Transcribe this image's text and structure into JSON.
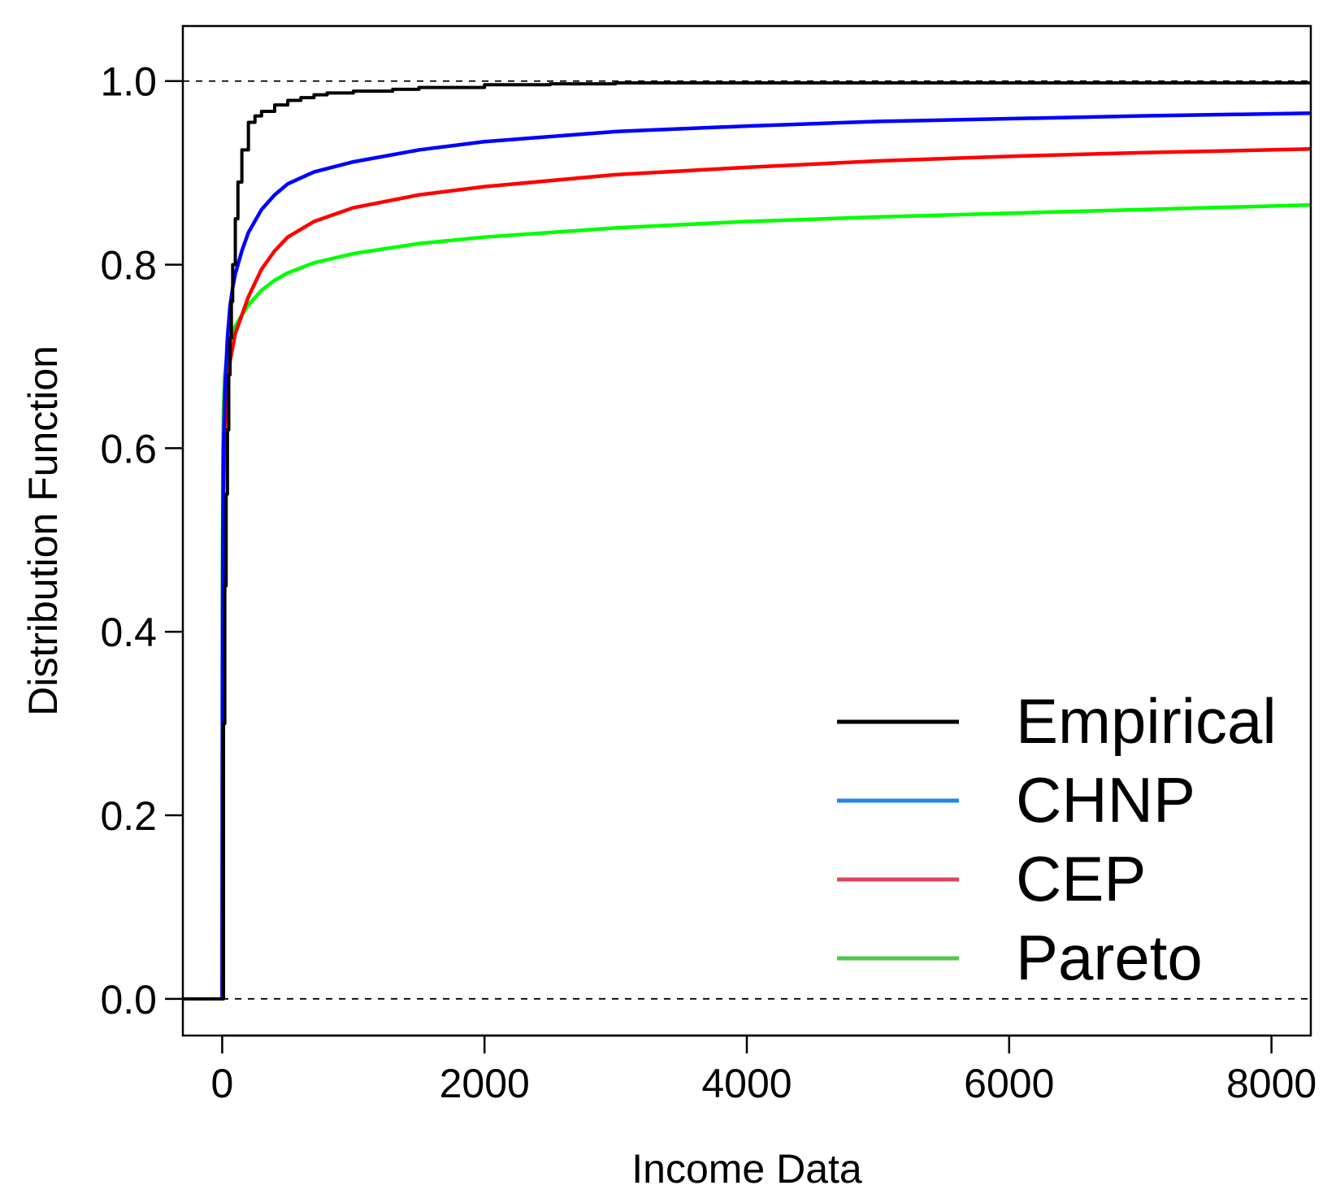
{
  "chart_data": {
    "type": "line",
    "title": "",
    "xlabel": "Income Data",
    "ylabel": "Distribution Function",
    "xlim": [
      -300,
      8300
    ],
    "ylim": [
      -0.04,
      1.06
    ],
    "x_ticks": [
      0,
      2000,
      4000,
      6000,
      8000
    ],
    "x_tick_labels": [
      "0",
      "2000",
      "4000",
      "6000",
      "8000"
    ],
    "y_ticks": [
      0.0,
      0.2,
      0.4,
      0.6,
      0.8,
      1.0
    ],
    "y_tick_labels": [
      "0.0",
      "0.2",
      "0.4",
      "0.6",
      "0.8",
      "1.0"
    ],
    "reference_lines": [
      0.0,
      1.0
    ],
    "grid": false,
    "legend_position": "bottom-right",
    "series": [
      {
        "name": "Empirical",
        "color": "#000000",
        "legend_color": "#000000",
        "step": true,
        "x": [
          -300,
          0,
          10,
          20,
          30,
          40,
          50,
          60,
          70,
          80,
          100,
          120,
          150,
          200,
          250,
          300,
          400,
          500,
          600,
          700,
          800,
          1000,
          1300,
          1500,
          2000,
          2500,
          3000,
          5000,
          8300
        ],
        "y": [
          0,
          0,
          0.3,
          0.45,
          0.55,
          0.62,
          0.68,
          0.72,
          0.76,
          0.8,
          0.85,
          0.89,
          0.925,
          0.955,
          0.962,
          0.967,
          0.974,
          0.979,
          0.982,
          0.985,
          0.987,
          0.989,
          0.991,
          0.993,
          0.996,
          0.997,
          0.998,
          0.998,
          0.998
        ]
      },
      {
        "name": "CHNP",
        "color": "#0000ff",
        "legend_color": "#2486e6",
        "x": [
          0,
          2,
          5,
          10,
          20,
          40,
          60,
          80,
          100,
          150,
          200,
          300,
          400,
          500,
          700,
          1000,
          1500,
          2000,
          3000,
          4000,
          5000,
          6000,
          7000,
          8300
        ],
        "y": [
          0,
          0.35,
          0.5,
          0.6,
          0.66,
          0.72,
          0.755,
          0.775,
          0.79,
          0.815,
          0.835,
          0.86,
          0.876,
          0.888,
          0.901,
          0.912,
          0.925,
          0.934,
          0.945,
          0.951,
          0.956,
          0.959,
          0.962,
          0.965
        ]
      },
      {
        "name": "CEP",
        "color": "#ff0000",
        "legend_color": "#e0445e",
        "x": [
          0,
          2,
          5,
          10,
          20,
          40,
          60,
          80,
          100,
          150,
          200,
          300,
          400,
          500,
          700,
          1000,
          1500,
          2000,
          3000,
          4000,
          5000,
          6000,
          7000,
          8300
        ],
        "y": [
          0,
          0.3,
          0.45,
          0.55,
          0.62,
          0.67,
          0.695,
          0.71,
          0.725,
          0.745,
          0.765,
          0.795,
          0.815,
          0.83,
          0.847,
          0.862,
          0.876,
          0.885,
          0.898,
          0.906,
          0.913,
          0.918,
          0.922,
          0.926
        ]
      },
      {
        "name": "Pareto",
        "color": "#00ff00",
        "legend_color": "#4cc94c",
        "x": [
          0,
          2,
          5,
          10,
          20,
          40,
          60,
          80,
          100,
          150,
          200,
          300,
          400,
          500,
          700,
          1000,
          1500,
          2000,
          3000,
          4000,
          5000,
          6000,
          7000,
          8300
        ],
        "y": [
          0,
          0.45,
          0.58,
          0.64,
          0.68,
          0.705,
          0.718,
          0.727,
          0.733,
          0.745,
          0.756,
          0.772,
          0.783,
          0.791,
          0.802,
          0.812,
          0.823,
          0.83,
          0.84,
          0.847,
          0.852,
          0.856,
          0.86,
          0.865
        ]
      }
    ]
  }
}
